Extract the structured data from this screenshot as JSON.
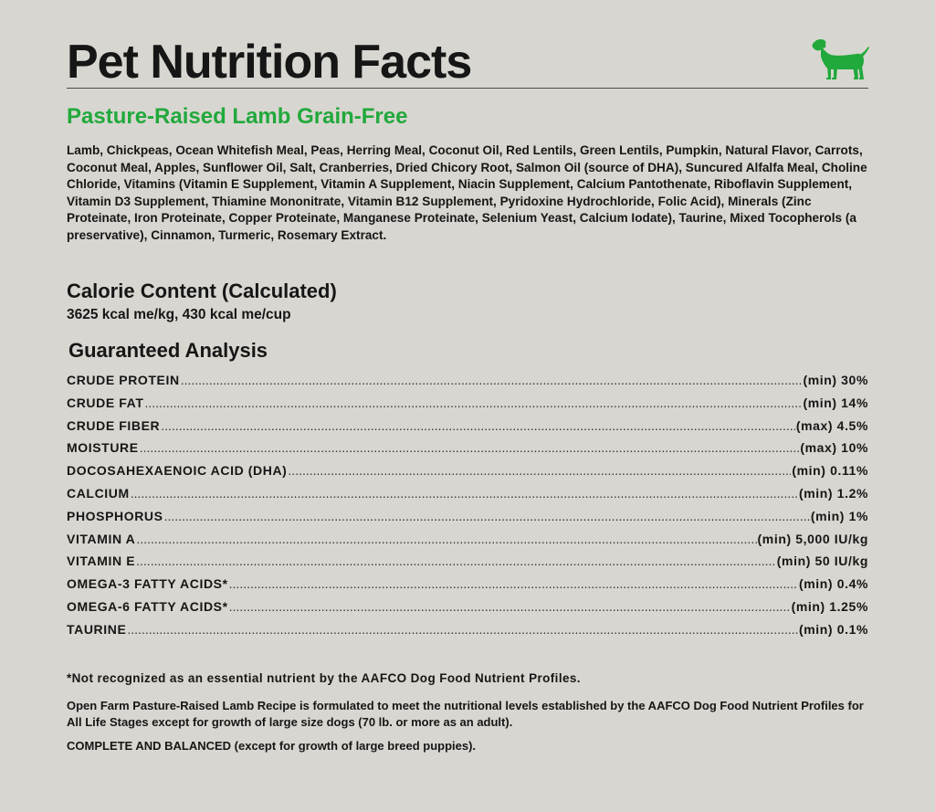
{
  "header": {
    "title": "Pet Nutrition Facts",
    "icon": "dog-icon",
    "icon_color": "#21a93c"
  },
  "product": {
    "name": "Pasture-Raised Lamb Grain-Free",
    "accent_color": "#21a93c"
  },
  "ingredients": "Lamb, Chickpeas, Ocean Whitefish Meal, Peas, Herring Meal, Coconut Oil, Red Lentils, Green Lentils, Pumpkin, Natural Flavor, Carrots, Coconut Meal, Apples, Sunflower Oil, Salt, Cranberries, Dried Chicory Root, Salmon Oil (source of DHA), Suncured Alfalfa Meal, Choline Chloride, Vitamins (Vitamin E Supplement, Vitamin A Supplement, Niacin Supplement, Calcium Pantothenate, Riboflavin Supplement, Vitamin D3 Supplement, Thiamine Mononitrate, Vitamin B12 Supplement, Pyridoxine Hydrochloride, Folic Acid), Minerals (Zinc Proteinate, Iron Proteinate, Copper Proteinate, Manganese Proteinate, Selenium Yeast, Calcium Iodate), Taurine, Mixed Tocopherols (a preservative), Cinnamon, Turmeric, Rosemary Extract.",
  "calorie": {
    "heading": "Calorie Content (Calculated)",
    "value": "3625 kcal me/kg, 430 kcal me/cup"
  },
  "analysis": {
    "heading": "Guaranteed Analysis",
    "rows": [
      {
        "name": "CRUDE PROTEIN",
        "value": "(min) 30%"
      },
      {
        "name": "CRUDE FAT",
        "value": "(min) 14%"
      },
      {
        "name": "CRUDE FIBER",
        "value": "(max) 4.5%"
      },
      {
        "name": "MOISTURE",
        "value": "(max) 10%"
      },
      {
        "name": "DOCOSAHEXAENOIC ACID (DHA)",
        "value": "(min) 0.11%"
      },
      {
        "name": "CALCIUM",
        "value": "(min) 1.2%"
      },
      {
        "name": "PHOSPHORUS",
        "value": "(min) 1%"
      },
      {
        "name": "VITAMIN A",
        "value": "(min) 5,000 IU/kg"
      },
      {
        "name": "VITAMIN E",
        "value": "(min) 50 IU/kg"
      },
      {
        "name": "OMEGA-3 FATTY ACIDS*",
        "value": "(min) 0.4%"
      },
      {
        "name": "OMEGA-6 FATTY ACIDS*",
        "value": "(min) 1.25%"
      },
      {
        "name": "TAURINE",
        "value": "(min) 0.1%"
      }
    ]
  },
  "footnote": "*Not recognized as an essential nutrient by the AAFCO Dog Food Nutrient Profiles.",
  "statement": "Open Farm Pasture-Raised Lamb Recipe is formulated to meet the nutritional levels established by the AAFCO Dog Food Nutrient Profiles for All Life Stages except for growth of large size dogs (70 lb. or more as an adult).",
  "complete": "COMPLETE AND BALANCED (except for growth of large breed puppies)."
}
